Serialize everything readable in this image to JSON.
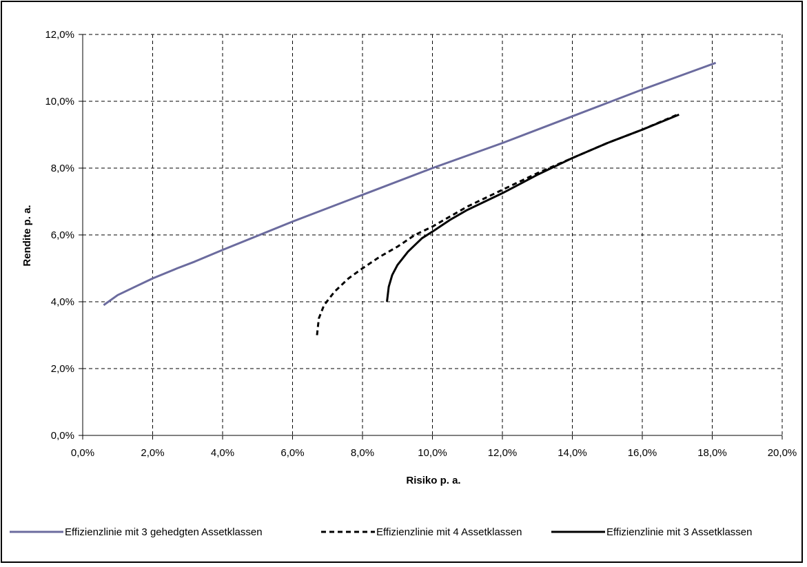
{
  "chart_data": {
    "type": "line",
    "xlabel": "Risiko p. a.",
    "ylabel": "Rendite p. a.",
    "xlim": [
      0,
      20
    ],
    "ylim": [
      0,
      12
    ],
    "x_ticks": [
      "0,0%",
      "2,0%",
      "4,0%",
      "6,0%",
      "8,0%",
      "10,0%",
      "12,0%",
      "14,0%",
      "16,0%",
      "18,0%",
      "20,0%"
    ],
    "y_ticks": [
      "0,0%",
      "2,0%",
      "4,0%",
      "6,0%",
      "8,0%",
      "10,0%",
      "12,0%"
    ],
    "grid": true,
    "legend_position": "bottom",
    "series": [
      {
        "name": "Effizienzlinie mit 3 gehedgten Assetklassen",
        "color": "#6b6b9e",
        "style": "solid",
        "x": [
          0.6,
          1.0,
          1.5,
          2.0,
          2.7,
          3.2,
          4.0,
          6.0,
          8.0,
          10.0,
          12.0,
          14.0,
          16.0,
          18.1
        ],
        "y": [
          3.9,
          4.2,
          4.45,
          4.7,
          5.0,
          5.2,
          5.55,
          6.4,
          7.2,
          8.0,
          8.75,
          9.55,
          10.35,
          11.15
        ]
      },
      {
        "name": "Effizienzlinie mit 4 Assetklassen",
        "color": "#000000",
        "style": "dashed",
        "x": [
          6.7,
          6.75,
          6.9,
          7.2,
          7.6,
          8.0,
          8.5,
          9.0,
          9.5,
          10.0,
          10.5,
          11.0,
          12.0,
          13.0,
          14.0,
          15.0,
          16.0,
          17.0
        ],
        "y": [
          3.0,
          3.5,
          3.9,
          4.3,
          4.7,
          5.0,
          5.35,
          5.65,
          6.0,
          6.25,
          6.55,
          6.85,
          7.35,
          7.85,
          8.3,
          8.75,
          9.15,
          9.6
        ]
      },
      {
        "name": "Effizienzlinie mit 3 Assetklassen",
        "color": "#000000",
        "style": "solid",
        "x": [
          8.7,
          8.75,
          8.85,
          9.0,
          9.3,
          9.7,
          10.0,
          10.5,
          11.0,
          12.0,
          13.0,
          14.0,
          15.0,
          16.0,
          17.05
        ],
        "y": [
          4.0,
          4.45,
          4.8,
          5.1,
          5.5,
          5.9,
          6.1,
          6.45,
          6.75,
          7.25,
          7.8,
          8.3,
          8.75,
          9.15,
          9.6
        ]
      }
    ]
  }
}
